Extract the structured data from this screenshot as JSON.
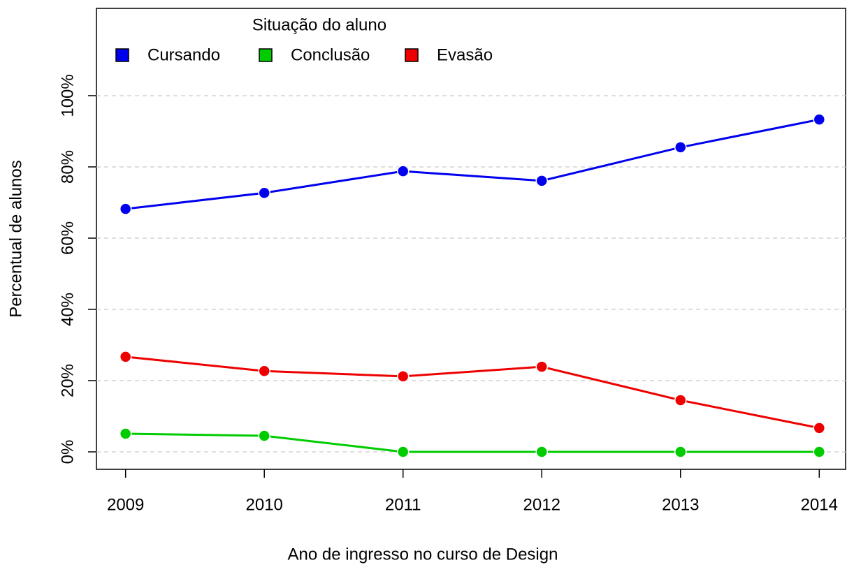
{
  "chart_data": {
    "type": "line",
    "x_label": "Ano de ingresso no curso de Design",
    "y_label": "Percentual de alunos",
    "legend_title": "Situação do aluno",
    "legend_position": "top",
    "x": [
      2009,
      2010,
      2011,
      2012,
      2013,
      2014
    ],
    "xlim": [
      2008.79,
      2014.19
    ],
    "xticks": [
      2009,
      2010,
      2011,
      2012,
      2013,
      2014
    ],
    "ylim": [
      -4.9,
      124.5
    ],
    "yticks": [
      {
        "value": 0,
        "label": "0%"
      },
      {
        "value": 20,
        "label": "20%"
      },
      {
        "value": 40,
        "label": "40%"
      },
      {
        "value": 60,
        "label": "60%"
      },
      {
        "value": 80,
        "label": "80%"
      },
      {
        "value": 100,
        "label": "100%"
      }
    ],
    "grid": true,
    "series": [
      {
        "name": "Cursando",
        "color": "#0000ee",
        "values": [
          68.2,
          72.7,
          78.8,
          76.1,
          85.5,
          93.3
        ]
      },
      {
        "name": "Conclusão",
        "color": "#00cc00",
        "values": [
          5.1,
          4.5,
          0,
          0,
          0,
          0
        ]
      },
      {
        "name": "Evasão",
        "color": "#ee0000",
        "values": [
          26.7,
          22.7,
          21.2,
          23.9,
          14.5,
          6.7
        ]
      }
    ]
  }
}
